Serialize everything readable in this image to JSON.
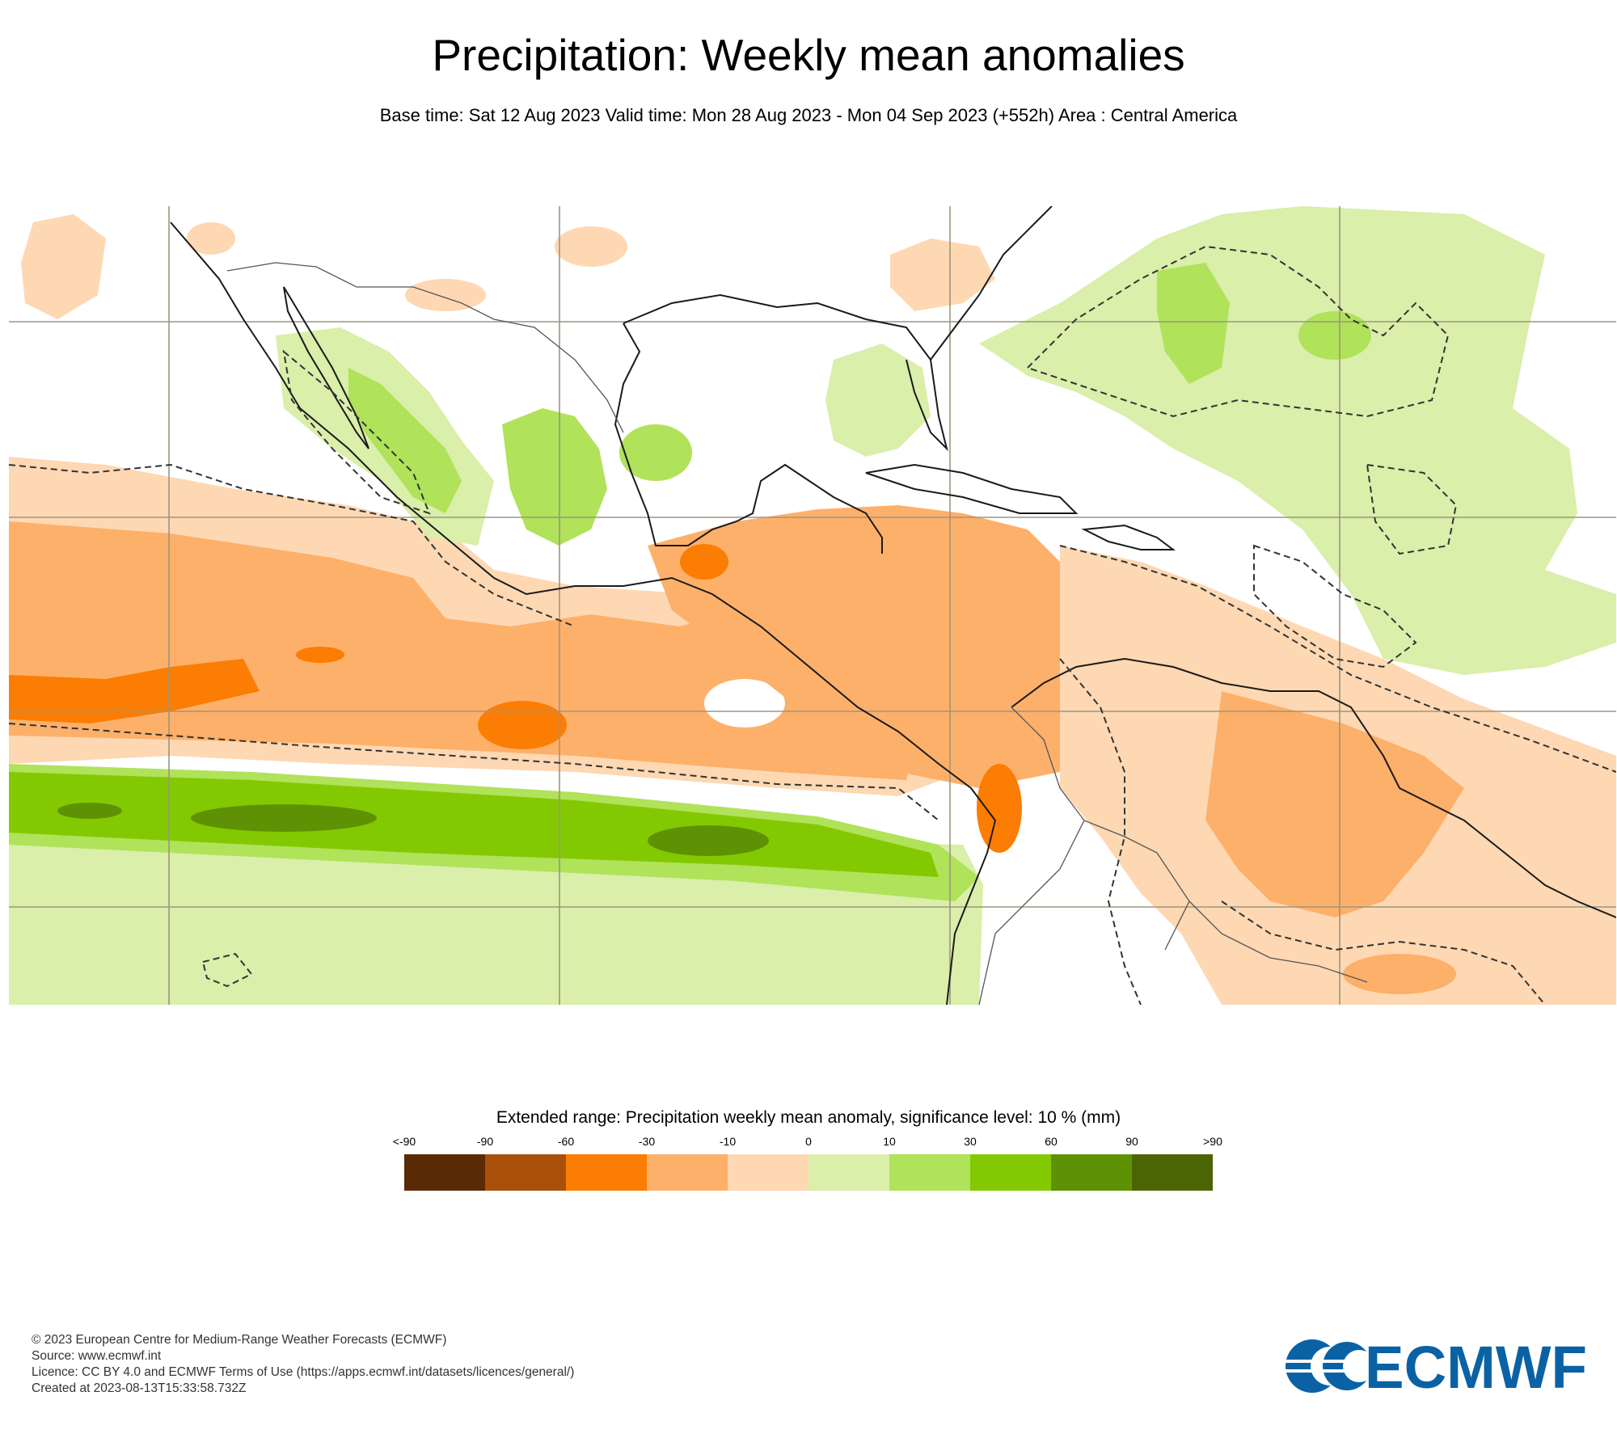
{
  "header": {
    "title": "Precipitation: Weekly mean anomalies",
    "subtitle": "Base time: Sat 12 Aug 2023 Valid time: Mon 28 Aug 2023 - Mon 04 Sep 2023 (+552h) Area : Central America"
  },
  "legend": {
    "title": "Extended range: Precipitation weekly mean anomaly, significance level: 10 % (mm)",
    "ticks": [
      "<-90",
      "-90",
      "-60",
      "-30",
      "-10",
      "0",
      "10",
      "30",
      "60",
      "90",
      ">90"
    ],
    "colors": [
      "#5a2a06",
      "#a9510a",
      "#fb7d03",
      "#fdb06a",
      "#fdd8b3",
      "#d9efaa",
      "#b0e25a",
      "#83c902",
      "#5e9204",
      "#4c6504"
    ]
  },
  "footer": {
    "copyright": "© 2023 European Centre for Medium-Range Weather Forecasts (ECMWF)",
    "source": "Source: www.ecmwf.int",
    "licence": "Licence: CC BY 4.0 and ECMWF Terms of Use (https://apps.ecmwf.int/datasets/licences/general/)",
    "created": "Created at 2023-08-13T15:33:58.732Z"
  },
  "logo": {
    "text": "ECMWF",
    "color": "#0a62a4"
  }
}
